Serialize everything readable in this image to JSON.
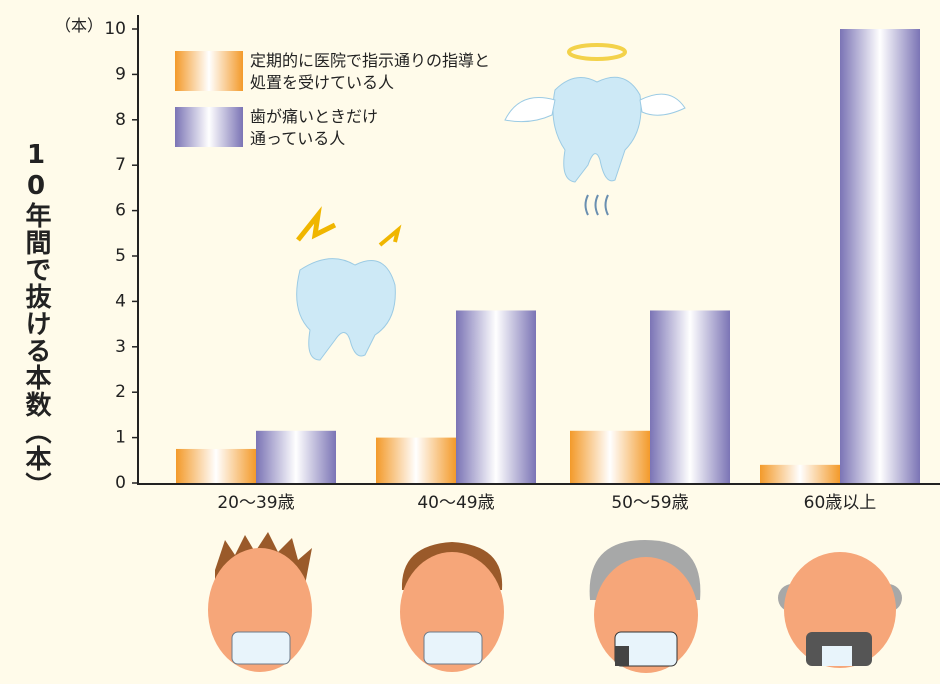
{
  "chart_data": {
    "type": "bar",
    "y_label": "10年間で抜ける本数（本）",
    "unit_label": "（本）",
    "categories": [
      "20〜39歳",
      "40〜49歳",
      "50〜59歳",
      "60歳以上"
    ],
    "series": [
      {
        "name": "定期的に医院で指示通りの指導と処置を受けている人",
        "color": "#f39a2a",
        "values": [
          0.75,
          1.0,
          1.15,
          0.4
        ]
      },
      {
        "name": "歯が痛いときだけ通っている人",
        "color": "#7b74b5",
        "values": [
          1.15,
          3.8,
          3.8,
          10
        ]
      }
    ],
    "ylim": [
      0,
      10
    ],
    "yticks": [
      0,
      1,
      2,
      3,
      4,
      5,
      6,
      7,
      8,
      9,
      10
    ]
  }
}
